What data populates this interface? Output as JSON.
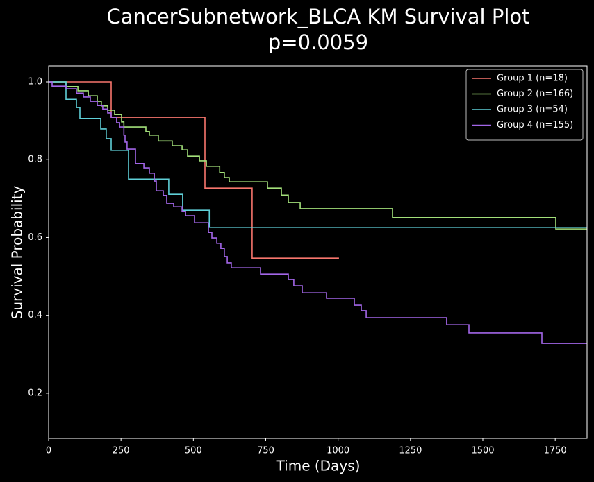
{
  "chart_data": {
    "type": "step",
    "title": "CancerSubnetwork_BLCA KM Survival Plot",
    "subtitle": "p=0.0059",
    "x_label": "Time (Days)",
    "y_label": "Survival Probability",
    "xlim": [
      0,
      1860
    ],
    "ylim": [
      0.084,
      1.041
    ],
    "xticks": [
      0,
      250,
      500,
      750,
      1000,
      1250,
      1500,
      1750
    ],
    "yticks": [
      0.2,
      0.4,
      0.6,
      0.8,
      {
        "value": 1,
        "label": "1.0"
      }
    ],
    "legend": "upper right",
    "series": [
      {
        "name": "Group 1 (n=18)",
        "color": "#f8766d",
        "x": [
          0,
          216,
          540,
          703,
          1003
        ],
        "y": [
          1,
          0.909,
          0.727,
          0.547,
          0.547
        ]
      },
      {
        "name": "Group 2 (n=166)",
        "color": "#a3e07a",
        "x": [
          0,
          60,
          101,
          137,
          168,
          182,
          204,
          228,
          252,
          260,
          336,
          348,
          379,
          427,
          461,
          480,
          521,
          545,
          591,
          607,
          624,
          756,
          804,
          828,
          869,
          1188,
          1752,
          1860
        ],
        "y": [
          1,
          0.988,
          0.977,
          0.964,
          0.95,
          0.938,
          0.927,
          0.916,
          0.897,
          0.884,
          0.872,
          0.863,
          0.848,
          0.836,
          0.825,
          0.809,
          0.797,
          0.783,
          0.767,
          0.754,
          0.743,
          0.727,
          0.709,
          0.69,
          0.674,
          0.651,
          0.622,
          0.622
        ]
      },
      {
        "name": "Group 3 (n=54)",
        "color": "#5fd0d8",
        "x": [
          0,
          60,
          96,
          108,
          180,
          199,
          216,
          276,
          415,
          463,
          555,
          1860
        ],
        "y": [
          1,
          0.955,
          0.934,
          0.906,
          0.879,
          0.854,
          0.824,
          0.75,
          0.711,
          0.67,
          0.626,
          0.626
        ]
      },
      {
        "name": "Group 4 (n=155)",
        "color": "#a366e8",
        "x": [
          0,
          12,
          60,
          96,
          120,
          144,
          168,
          187,
          204,
          216,
          235,
          245,
          260,
          264,
          271,
          300,
          329,
          348,
          365,
          372,
          396,
          408,
          432,
          461,
          473,
          504,
          552,
          564,
          581,
          595,
          607,
          617,
          631,
          732,
          828,
          847,
          876,
          960,
          1056,
          1080,
          1097,
          1375,
          1452,
          1704,
          1860
        ],
        "y": [
          1,
          0.989,
          0.982,
          0.971,
          0.961,
          0.95,
          0.939,
          0.93,
          0.92,
          0.909,
          0.895,
          0.884,
          0.863,
          0.845,
          0.827,
          0.79,
          0.779,
          0.765,
          0.745,
          0.72,
          0.708,
          0.688,
          0.679,
          0.667,
          0.656,
          0.638,
          0.613,
          0.599,
          0.585,
          0.572,
          0.551,
          0.535,
          0.522,
          0.506,
          0.492,
          0.476,
          0.458,
          0.444,
          0.426,
          0.412,
          0.394,
          0.376,
          0.355,
          0.328,
          0.328
        ]
      }
    ]
  }
}
